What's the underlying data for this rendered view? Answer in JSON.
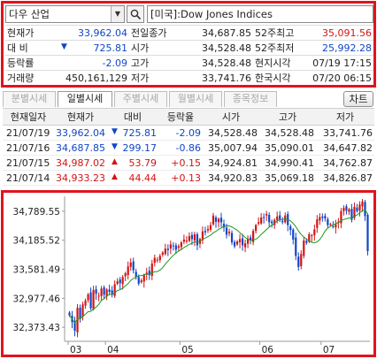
{
  "header": {
    "stock_name": "다우 산업",
    "index_label": "[미국]:Dow Jones Indices"
  },
  "quote": {
    "rows": [
      {
        "l1": "현재가",
        "v1": "33,962.04",
        "l2": "전일종가",
        "v2": "34,687.85",
        "l3": "52주최고",
        "v3": "35,091.56"
      },
      {
        "l1": "대  비",
        "v1": "725.81",
        "l2": "시가",
        "v2": "34,528.48",
        "l3": "52주최저",
        "v3": "25,992.28"
      },
      {
        "l1": "등락률",
        "v1": "-2.09",
        "l2": "고가",
        "v2": "34,528.48",
        "l3": "현지시각",
        "v3": "07/19 17:15"
      },
      {
        "l1": "거래량",
        "v1": "450,161,129",
        "l2": "저가",
        "v2": "33,741.76",
        "l3": "한국시각",
        "v3": "07/20 06:15"
      }
    ]
  },
  "tabs": [
    "분별시세",
    "일별시세",
    "주별시세",
    "월별시세",
    "종목정보"
  ],
  "chart_button": "차트",
  "history": {
    "columns": [
      "현재일자",
      "현재가",
      "대비",
      "등락율",
      "시가",
      "고가",
      "저가"
    ],
    "rows": [
      {
        "date": "21/07/19",
        "price": "33,962.04",
        "change": "725.81",
        "pct": "-2.09",
        "open": "34,528.48",
        "high": "34,528.48",
        "low": "33,741.76",
        "dir": "down"
      },
      {
        "date": "21/07/16",
        "price": "34,687.85",
        "change": "299.17",
        "pct": "-0.86",
        "open": "35,007.94",
        "high": "35,090.01",
        "low": "34,647.82",
        "dir": "down"
      },
      {
        "date": "21/07/15",
        "price": "34,987.02",
        "change": "53.79",
        "pct": "+0.15",
        "open": "34,924.81",
        "high": "34,990.41",
        "low": "34,762.87",
        "dir": "up"
      },
      {
        "date": "21/07/14",
        "price": "34,933.23",
        "change": "44.44",
        "pct": "+0.13",
        "open": "34,920.83",
        "high": "35,069.18",
        "low": "34,826.87",
        "dir": "up"
      }
    ]
  },
  "chart_data": {
    "type": "candlestick",
    "y_ticks": [
      "34,789.55",
      "34,185.52",
      "33,581.49",
      "32,977.46",
      "32,373.43"
    ],
    "x_ticks": [
      "03",
      "04",
      "05",
      "06",
      "07"
    ],
    "ylim": [
      32100,
      35100
    ],
    "up_color": "#d21414",
    "down_color": "#1146c8",
    "ma_color": "#1c9a1c",
    "closes": [
      32620,
      32480,
      32300,
      32780,
      32560,
      32850,
      32930,
      33060,
      32770,
      33150,
      33070,
      33030,
      33180,
      33050,
      33160,
      33110,
      33050,
      33270,
      33330,
      33290,
      33420,
      33500,
      33640,
      33720,
      33560,
      33420,
      33280,
      33350,
      33460,
      33510,
      33460,
      33700,
      33820,
      33780,
      33860,
      33930,
      34010,
      33980,
      34100,
      34070,
      33990,
      34060,
      34140,
      34200,
      34180,
      34270,
      34210,
      34310,
      34080,
      34210,
      34370,
      34350,
      34420,
      34500,
      34700,
      34570,
      34630,
      34560,
      34450,
      34300,
      34360,
      34140,
      34060,
      34160,
      34210,
      34080,
      34120,
      34220,
      34180,
      34380,
      34500,
      34560,
      34660,
      34660,
      34730,
      34560,
      34540,
      34610,
      34680,
      34620,
      34560,
      34700,
      34500,
      34400,
      34200,
      33860,
      33630,
      33900,
      34180,
      34130,
      34310,
      34290,
      34410,
      34620,
      34670,
      34650,
      34640,
      34500,
      34520,
      34460,
      34520,
      34570,
      34790,
      34860,
      34800,
      34830,
      34610,
      34880,
      34790,
      34930,
      34990,
      34690,
      33960
    ]
  }
}
